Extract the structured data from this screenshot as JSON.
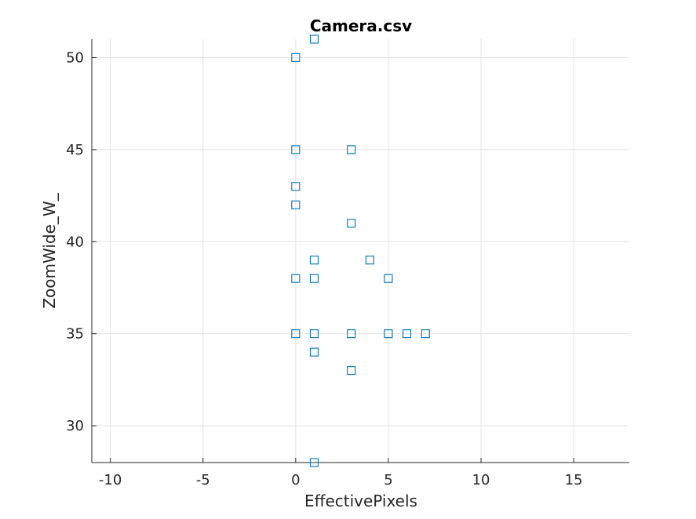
{
  "chart_data": {
    "type": "scatter",
    "title": "Camera.csv",
    "xlabel": "EffectivePixels",
    "ylabel": "ZoomWide_W_",
    "xlim": [
      -11,
      18
    ],
    "ylim": [
      28,
      51
    ],
    "xticks": [
      -10,
      -5,
      0,
      5,
      10,
      15
    ],
    "yticks": [
      30,
      35,
      40,
      45,
      50
    ],
    "grid": true,
    "marker": "square-open",
    "marker_color": "#0072BD",
    "points": [
      {
        "x": 1,
        "y": 51
      },
      {
        "x": 0,
        "y": 50
      },
      {
        "x": 0,
        "y": 45
      },
      {
        "x": 3,
        "y": 45
      },
      {
        "x": 0,
        "y": 43
      },
      {
        "x": 0,
        "y": 42
      },
      {
        "x": 3,
        "y": 41
      },
      {
        "x": 1,
        "y": 39
      },
      {
        "x": 4,
        "y": 39
      },
      {
        "x": 0,
        "y": 38
      },
      {
        "x": 1,
        "y": 38
      },
      {
        "x": 5,
        "y": 38
      },
      {
        "x": 0,
        "y": 35
      },
      {
        "x": 1,
        "y": 35
      },
      {
        "x": 3,
        "y": 35
      },
      {
        "x": 5,
        "y": 35
      },
      {
        "x": 6,
        "y": 35
      },
      {
        "x": 7,
        "y": 35
      },
      {
        "x": 1,
        "y": 34
      },
      {
        "x": 3,
        "y": 33
      },
      {
        "x": 1,
        "y": 28
      }
    ]
  }
}
